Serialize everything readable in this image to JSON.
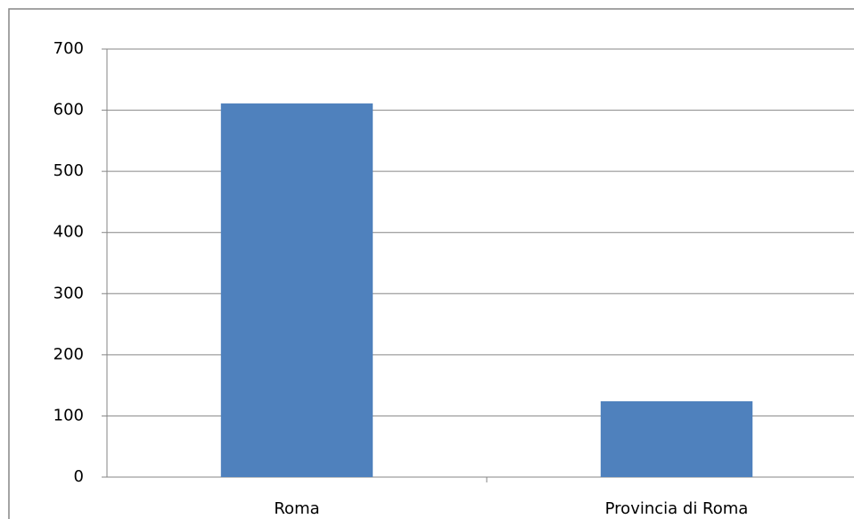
{
  "chart_data": {
    "type": "bar",
    "categories": [
      "Roma",
      "Provincia di Roma"
    ],
    "values": [
      611,
      124
    ],
    "color": "#4f81bd",
    "ylim": [
      0,
      700
    ],
    "yticks": [
      0,
      100,
      200,
      300,
      400,
      500,
      600,
      700
    ],
    "grid": true
  }
}
